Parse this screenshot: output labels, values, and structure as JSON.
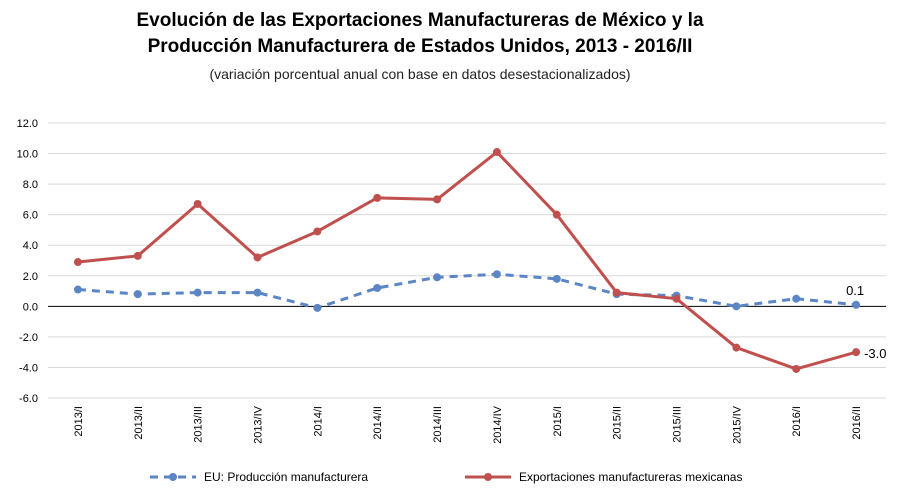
{
  "chart_data": {
    "type": "line",
    "title_line1": "Evolución de las Exportaciones Manufactureras de México y la",
    "title_line2": "Producción Manufacturera de Estados Unidos,  2013 - 2016/II",
    "subtitle": "(variación porcentual  anual con base en datos desestacionalizados)",
    "ylim": [
      -6.0,
      12.0
    ],
    "yticks": [
      "12.0",
      "10.0",
      "8.0",
      "6.0",
      "4.0",
      "2.0",
      "0.0",
      "-2.0",
      "-4.0",
      "-6.0"
    ],
    "grid": true,
    "legend_position": "bottom",
    "categories": [
      "2013/I",
      "2013/II",
      "2013/III",
      "2013/IV",
      "2014/I",
      "2014/II",
      "2014/III",
      "2014/IV",
      "2015/I",
      "2015/II",
      "2015/III",
      "2015/IV",
      "2016/I",
      "2016/II"
    ],
    "series": [
      {
        "name": "EU: Producción manufacturera",
        "color": "#5b85c4",
        "style": "dashed",
        "values": [
          1.1,
          0.8,
          0.9,
          0.9,
          -0.1,
          1.2,
          1.9,
          2.1,
          1.8,
          0.8,
          0.7,
          0.0,
          0.5,
          0.1
        ],
        "end_label": "0.1"
      },
      {
        "name": "Exportaciones manufactureras mexicanas",
        "color": "#c0504d",
        "style": "solid",
        "values": [
          2.9,
          3.3,
          6.7,
          3.2,
          4.9,
          7.1,
          7.0,
          10.1,
          6.0,
          0.9,
          0.5,
          -2.7,
          -4.1,
          -3.0
        ],
        "end_label": "-3.0"
      }
    ]
  }
}
